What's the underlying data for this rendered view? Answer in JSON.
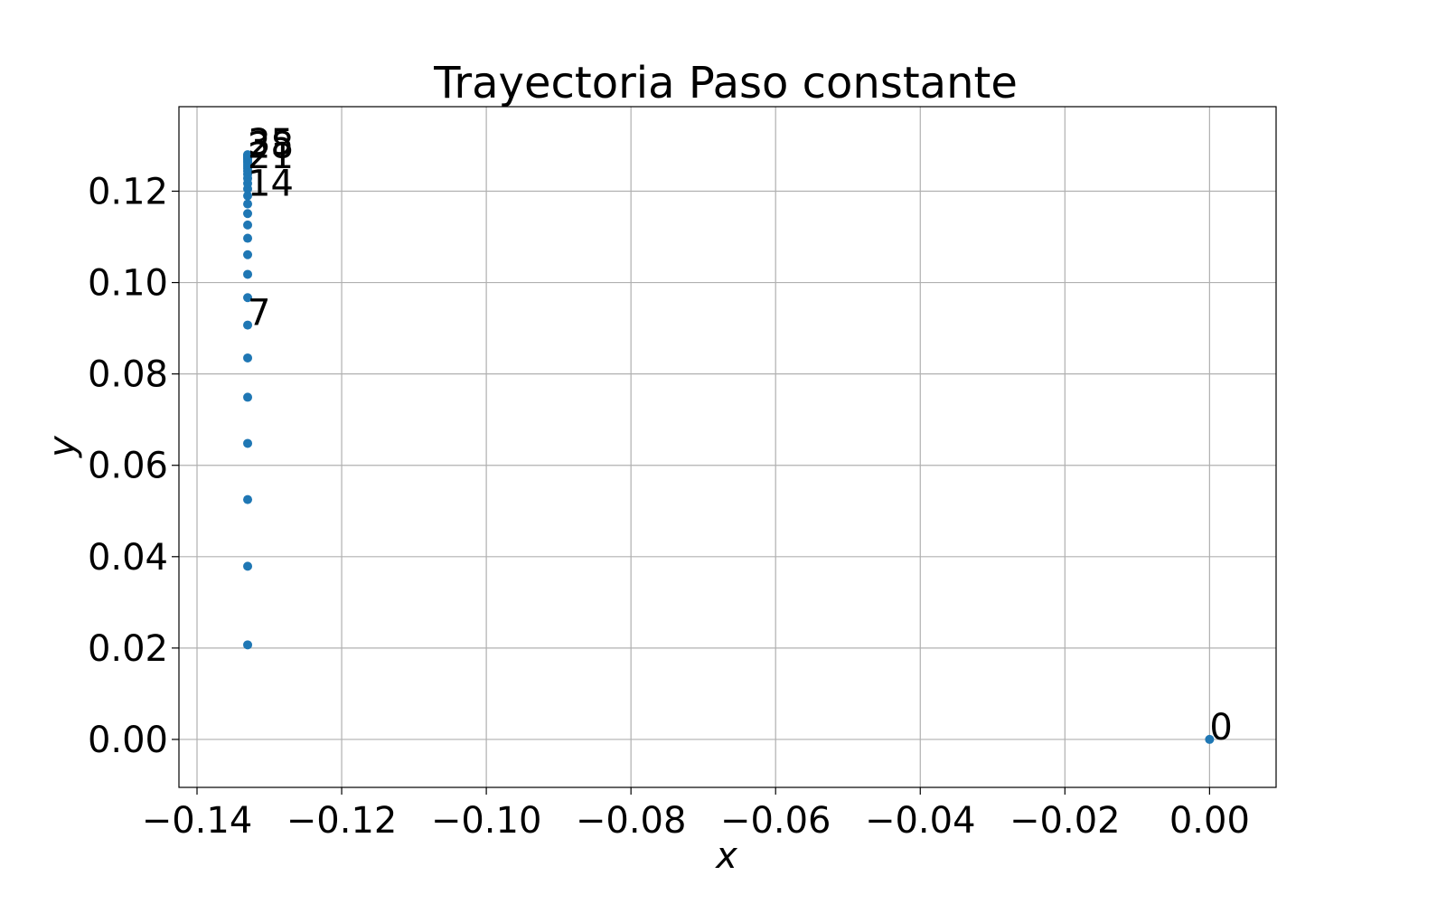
{
  "chart_data": {
    "type": "scatter",
    "title": "Trayectoria Paso constante",
    "xlabel": "x",
    "ylabel": "y",
    "xlim": [
      -0.1425,
      0.0092
    ],
    "ylim": [
      -0.0105,
      0.1385
    ],
    "grid": true,
    "color": "#1f77b4",
    "xticks": [
      -0.14,
      -0.12,
      -0.1,
      -0.08,
      -0.06,
      -0.04,
      -0.02,
      0.0
    ],
    "xtick_labels": [
      "−0.14",
      "−0.12",
      "−0.10",
      "−0.08",
      "−0.06",
      "−0.04",
      "−0.02",
      "0.00"
    ],
    "yticks": [
      0.0,
      0.02,
      0.04,
      0.06,
      0.08,
      0.1,
      0.12
    ],
    "ytick_labels": [
      "0.00",
      "0.02",
      "0.04",
      "0.06",
      "0.08",
      "0.10",
      "0.12"
    ],
    "points": [
      {
        "x": 0.0,
        "y": 0.0
      },
      {
        "x": -0.133,
        "y": 0.0207
      },
      {
        "x": -0.133,
        "y": 0.0379
      },
      {
        "x": -0.133,
        "y": 0.0525
      },
      {
        "x": -0.133,
        "y": 0.0648
      },
      {
        "x": -0.133,
        "y": 0.0749
      },
      {
        "x": -0.133,
        "y": 0.0835
      },
      {
        "x": -0.133,
        "y": 0.0907
      },
      {
        "x": -0.133,
        "y": 0.0967
      },
      {
        "x": -0.133,
        "y": 0.1018
      },
      {
        "x": -0.133,
        "y": 0.1061
      },
      {
        "x": -0.133,
        "y": 0.1097
      },
      {
        "x": -0.133,
        "y": 0.1126
      },
      {
        "x": -0.133,
        "y": 0.1151
      },
      {
        "x": -0.133,
        "y": 0.1172
      },
      {
        "x": -0.133,
        "y": 0.119
      },
      {
        "x": -0.133,
        "y": 0.1205
      },
      {
        "x": -0.133,
        "y": 0.1217
      },
      {
        "x": -0.133,
        "y": 0.1228
      },
      {
        "x": -0.133,
        "y": 0.1237
      },
      {
        "x": -0.133,
        "y": 0.1244
      },
      {
        "x": -0.133,
        "y": 0.125
      },
      {
        "x": -0.133,
        "y": 0.1255
      },
      {
        "x": -0.133,
        "y": 0.1259
      },
      {
        "x": -0.133,
        "y": 0.1263
      },
      {
        "x": -0.133,
        "y": 0.1266
      },
      {
        "x": -0.133,
        "y": 0.1269
      },
      {
        "x": -0.133,
        "y": 0.1271
      },
      {
        "x": -0.133,
        "y": 0.1273
      },
      {
        "x": -0.133,
        "y": 0.1274
      },
      {
        "x": -0.133,
        "y": 0.1276
      },
      {
        "x": -0.133,
        "y": 0.1277
      },
      {
        "x": -0.133,
        "y": 0.1278
      },
      {
        "x": -0.133,
        "y": 0.1279
      },
      {
        "x": -0.133,
        "y": 0.1279
      },
      {
        "x": -0.133,
        "y": 0.128
      }
    ],
    "annotations": [
      {
        "label": "0",
        "x": 0.0,
        "y": 0.0
      },
      {
        "label": "7",
        "x": -0.133,
        "y": 0.0907
      },
      {
        "label": "14",
        "x": -0.133,
        "y": 0.119
      },
      {
        "label": "21",
        "x": -0.133,
        "y": 0.125
      },
      {
        "label": "28",
        "x": -0.133,
        "y": 0.1273
      },
      {
        "label": "35",
        "x": -0.133,
        "y": 0.128
      }
    ]
  }
}
